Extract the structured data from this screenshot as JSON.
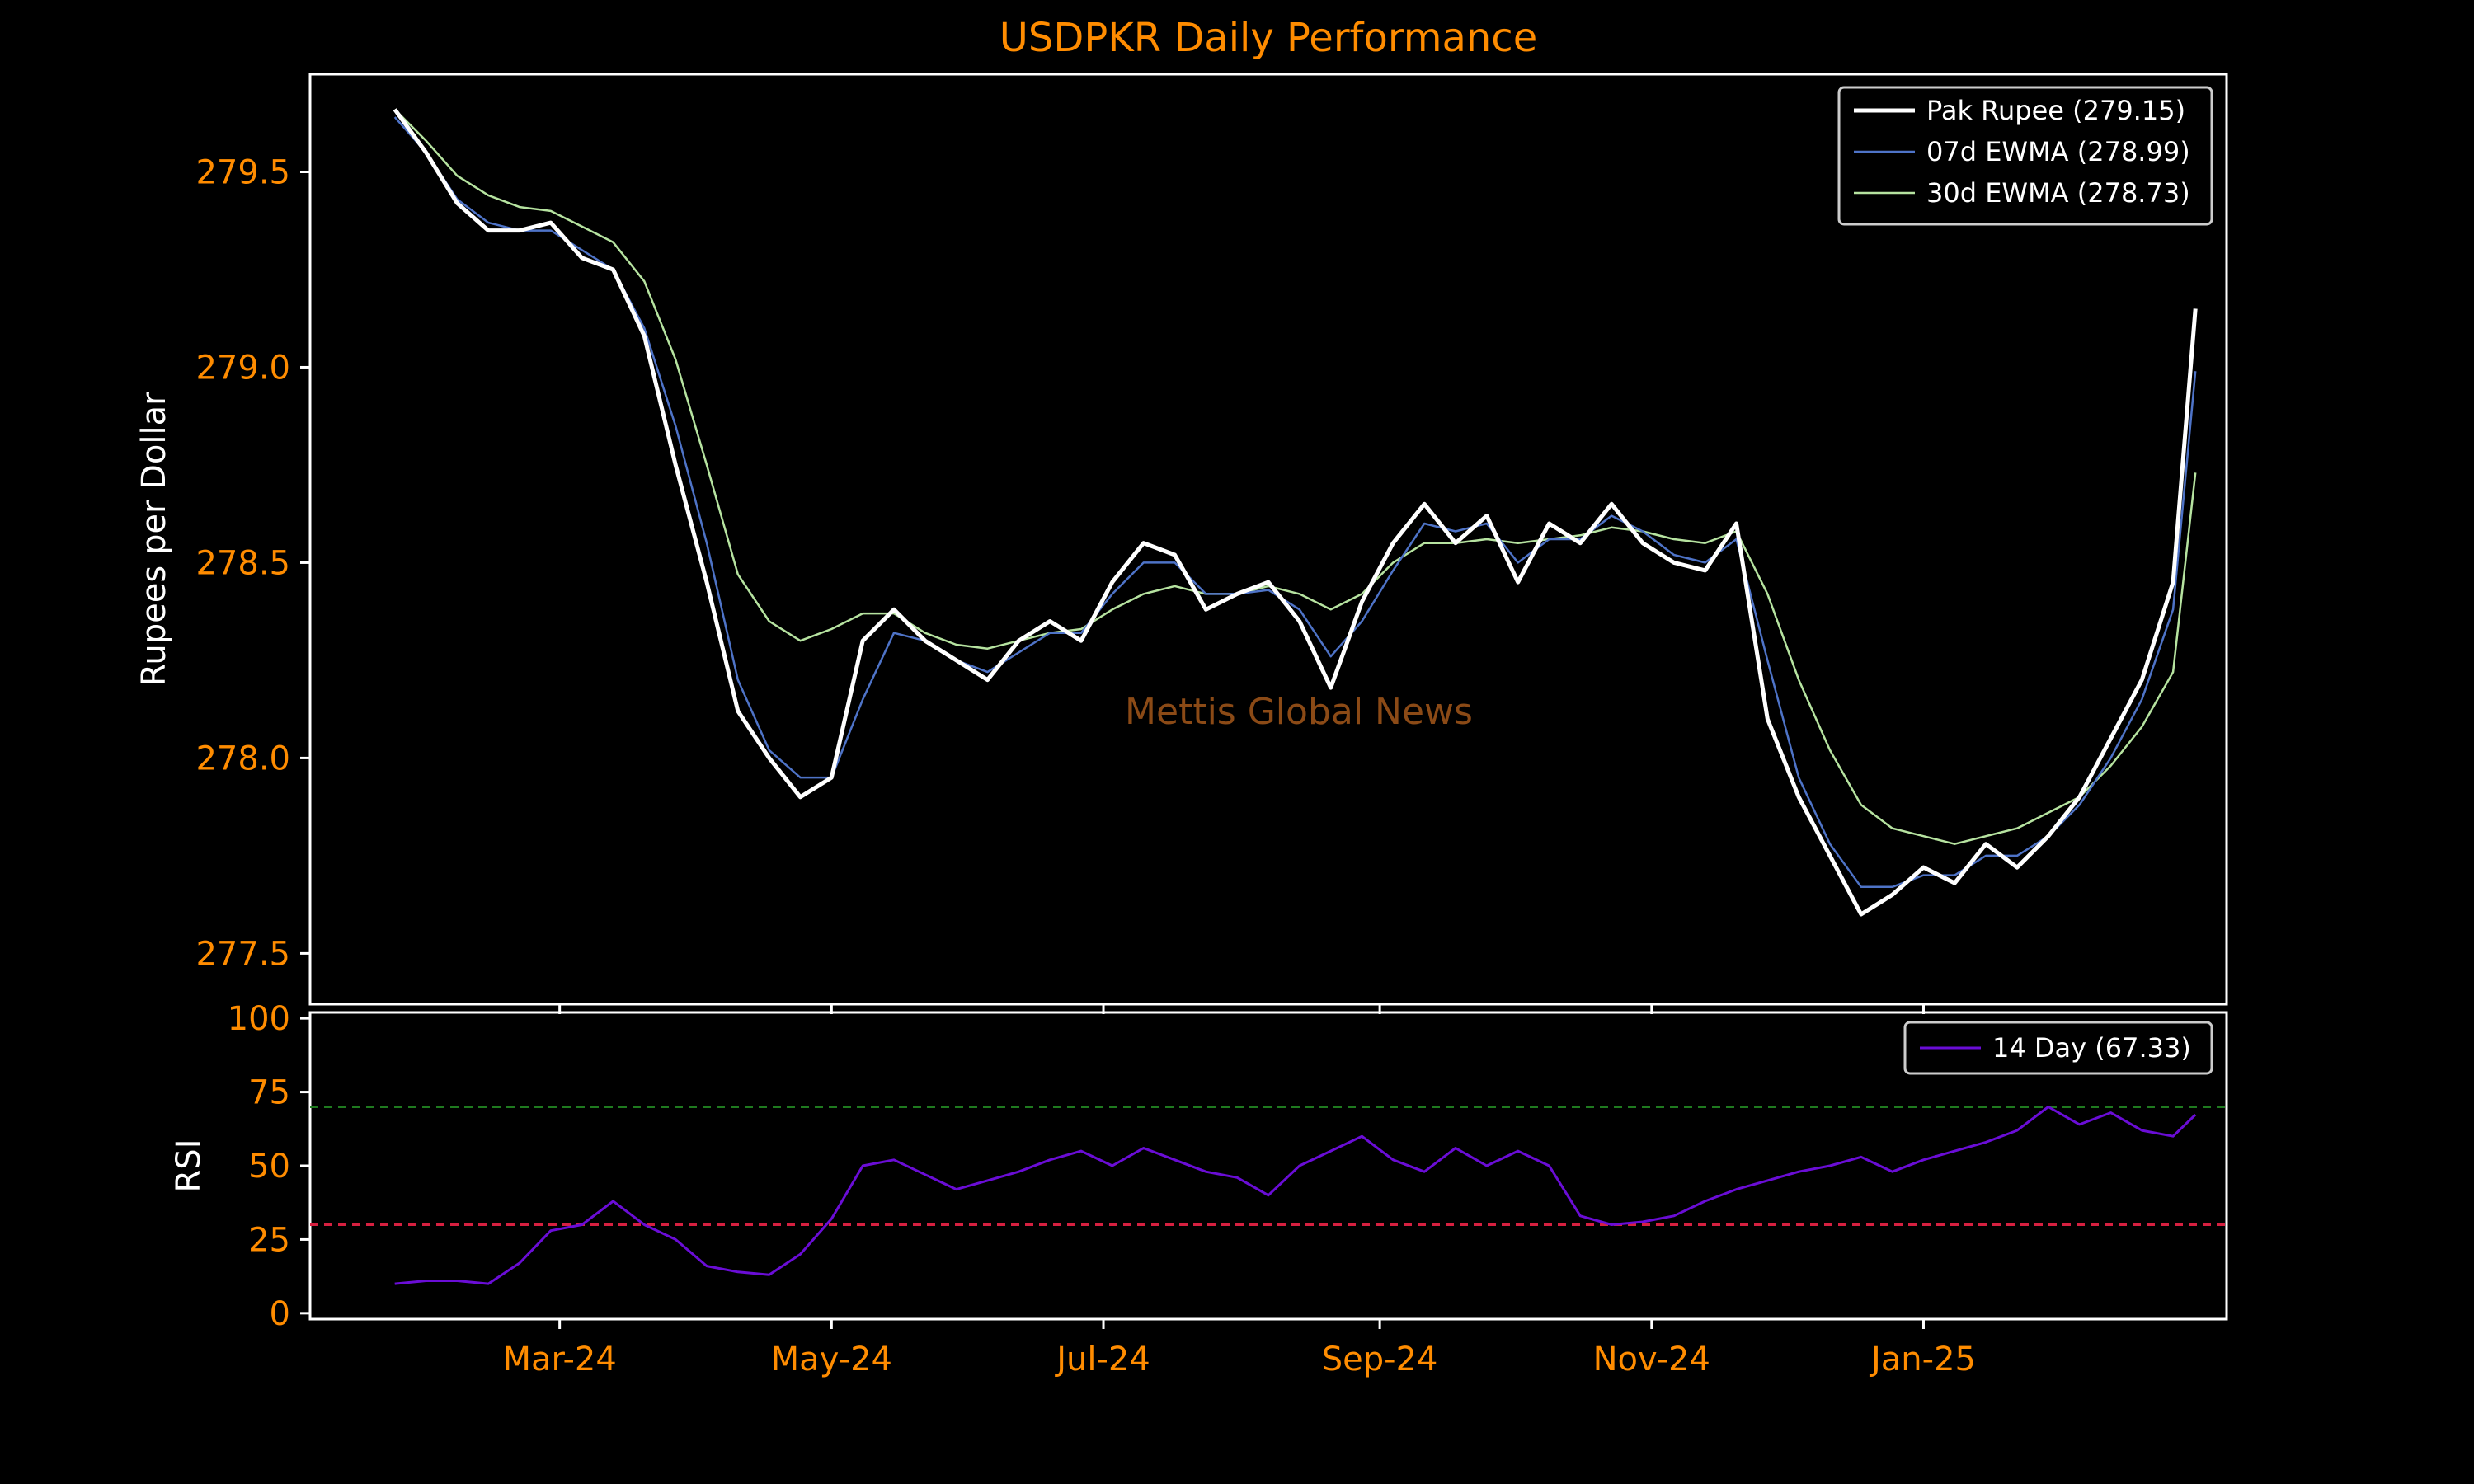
{
  "watermark": "Mettis Global News",
  "colors": {
    "background": "#000000",
    "frame": "#ffffff",
    "tick_label": "#ff8c00",
    "title": "#ff8c00",
    "price": "#ffffff",
    "ewma7": "#4e73c7",
    "ewma30": "#b6e3a0",
    "rsi": "#6a0dd6",
    "overbought": "#1f7a1f",
    "oversold": "#d62040",
    "watermark": "#8b4a16"
  },
  "chart_data": [
    {
      "type": "line",
      "title": "USDPKR Daily Performance",
      "xlabel": "",
      "ylabel": "Rupees per Dollar",
      "x_ticks": [
        "Mar-24",
        "May-24",
        "Jul-24",
        "Sep-24",
        "Nov-24",
        "Jan-25"
      ],
      "x_tick_dates": [
        "2024-03-01",
        "2024-05-01",
        "2024-07-01",
        "2024-09-01",
        "2024-11-01",
        "2025-01-01"
      ],
      "xlim": [
        "2024-01-05",
        "2025-03-10"
      ],
      "y_ticks": [
        "277.5",
        "278.0",
        "278.5",
        "279.0",
        "279.5"
      ],
      "y_tick_values": [
        277.5,
        278.0,
        278.5,
        279.0,
        279.5
      ],
      "ylim": [
        277.37,
        279.75
      ],
      "grid": false,
      "legend": "top-right",
      "x": [
        "2024-01-24",
        "2024-01-31",
        "2024-02-07",
        "2024-02-14",
        "2024-02-21",
        "2024-02-28",
        "2024-03-06",
        "2024-03-13",
        "2024-03-20",
        "2024-03-27",
        "2024-04-03",
        "2024-04-10",
        "2024-04-17",
        "2024-04-24",
        "2024-05-01",
        "2024-05-08",
        "2024-05-15",
        "2024-05-22",
        "2024-05-29",
        "2024-06-05",
        "2024-06-12",
        "2024-06-19",
        "2024-06-26",
        "2024-07-03",
        "2024-07-10",
        "2024-07-17",
        "2024-07-24",
        "2024-07-31",
        "2024-08-07",
        "2024-08-14",
        "2024-08-21",
        "2024-08-28",
        "2024-09-04",
        "2024-09-11",
        "2024-09-18",
        "2024-09-25",
        "2024-10-02",
        "2024-10-09",
        "2024-10-16",
        "2024-10-23",
        "2024-10-30",
        "2024-11-06",
        "2024-11-13",
        "2024-11-20",
        "2024-11-27",
        "2024-12-04",
        "2024-12-11",
        "2024-12-18",
        "2024-12-25",
        "2025-01-01",
        "2025-01-08",
        "2025-01-15",
        "2025-01-22",
        "2025-01-29",
        "2025-02-05",
        "2025-02-12",
        "2025-02-19",
        "2025-02-26",
        "2025-03-03"
      ],
      "series": [
        {
          "name": "Pak Rupee (279.15)",
          "values": [
            279.66,
            279.55,
            279.42,
            279.35,
            279.35,
            279.37,
            279.28,
            279.25,
            279.08,
            278.75,
            278.45,
            278.12,
            278.0,
            277.9,
            277.95,
            278.3,
            278.38,
            278.3,
            278.25,
            278.2,
            278.3,
            278.35,
            278.3,
            278.45,
            278.55,
            278.52,
            278.38,
            278.42,
            278.45,
            278.35,
            278.18,
            278.4,
            278.55,
            278.65,
            278.55,
            278.62,
            278.45,
            278.6,
            278.55,
            278.65,
            278.55,
            278.5,
            278.48,
            278.6,
            278.1,
            277.9,
            277.75,
            277.6,
            277.65,
            277.72,
            277.68,
            277.78,
            277.72,
            277.8,
            277.9,
            278.05,
            278.2,
            278.45,
            279.15
          ]
        },
        {
          "name": "07d EWMA (278.99)",
          "values": [
            279.64,
            279.55,
            279.43,
            279.37,
            279.35,
            279.35,
            279.3,
            279.25,
            279.1,
            278.85,
            278.55,
            278.2,
            278.02,
            277.95,
            277.95,
            278.15,
            278.32,
            278.3,
            278.25,
            278.22,
            278.27,
            278.32,
            278.32,
            278.42,
            278.5,
            278.5,
            278.42,
            278.42,
            278.43,
            278.38,
            278.26,
            278.35,
            278.48,
            278.6,
            278.58,
            278.6,
            278.5,
            278.56,
            278.56,
            278.62,
            278.58,
            278.52,
            278.5,
            278.56,
            278.25,
            277.95,
            277.78,
            277.67,
            277.67,
            277.7,
            277.7,
            277.75,
            277.75,
            277.8,
            277.88,
            278.0,
            278.15,
            278.38,
            278.99
          ]
        },
        {
          "name": "30d EWMA (278.73)",
          "values": [
            279.66,
            279.58,
            279.49,
            279.44,
            279.41,
            279.4,
            279.36,
            279.32,
            279.22,
            279.02,
            278.75,
            278.47,
            278.35,
            278.3,
            278.33,
            278.37,
            278.37,
            278.32,
            278.29,
            278.28,
            278.3,
            278.32,
            278.33,
            278.38,
            278.42,
            278.44,
            278.42,
            278.42,
            278.44,
            278.42,
            278.38,
            278.42,
            278.5,
            278.55,
            278.55,
            278.56,
            278.55,
            278.56,
            278.57,
            278.59,
            278.58,
            278.56,
            278.55,
            278.58,
            278.42,
            278.2,
            278.02,
            277.88,
            277.82,
            277.8,
            277.78,
            277.8,
            277.82,
            277.86,
            277.9,
            277.98,
            278.08,
            278.22,
            278.73
          ]
        }
      ]
    },
    {
      "type": "line",
      "title": "",
      "xlabel": "",
      "ylabel": "RSI",
      "y_ticks": [
        "0",
        "25",
        "50",
        "75",
        "100"
      ],
      "y_tick_values": [
        0,
        25,
        50,
        75,
        100
      ],
      "ylim": [
        -2,
        102
      ],
      "xlim": [
        "2024-01-05",
        "2025-03-10"
      ],
      "grid": false,
      "legend": "top-right",
      "reference_lines": [
        70,
        30
      ],
      "x": [
        "2024-01-24",
        "2024-01-31",
        "2024-02-07",
        "2024-02-14",
        "2024-02-21",
        "2024-02-28",
        "2024-03-06",
        "2024-03-13",
        "2024-03-20",
        "2024-03-27",
        "2024-04-03",
        "2024-04-10",
        "2024-04-17",
        "2024-04-24",
        "2024-05-01",
        "2024-05-08",
        "2024-05-15",
        "2024-05-22",
        "2024-05-29",
        "2024-06-05",
        "2024-06-12",
        "2024-06-19",
        "2024-06-26",
        "2024-07-03",
        "2024-07-10",
        "2024-07-17",
        "2024-07-24",
        "2024-07-31",
        "2024-08-07",
        "2024-08-14",
        "2024-08-21",
        "2024-08-28",
        "2024-09-04",
        "2024-09-11",
        "2024-09-18",
        "2024-09-25",
        "2024-10-02",
        "2024-10-09",
        "2024-10-16",
        "2024-10-23",
        "2024-10-30",
        "2024-11-06",
        "2024-11-13",
        "2024-11-20",
        "2024-11-27",
        "2024-12-04",
        "2024-12-11",
        "2024-12-18",
        "2024-12-25",
        "2025-01-01",
        "2025-01-08",
        "2025-01-15",
        "2025-01-22",
        "2025-01-29",
        "2025-02-05",
        "2025-02-12",
        "2025-02-19",
        "2025-02-26",
        "2025-03-03"
      ],
      "series": [
        {
          "name": "14 Day (67.33)",
          "values": [
            10,
            11,
            11,
            10,
            17,
            28,
            30,
            38,
            30,
            25,
            16,
            14,
            13,
            20,
            32,
            50,
            52,
            47,
            42,
            45,
            48,
            52,
            55,
            50,
            56,
            52,
            48,
            46,
            40,
            50,
            55,
            60,
            52,
            48,
            56,
            50,
            55,
            50,
            33,
            30,
            31,
            33,
            38,
            42,
            45,
            48,
            50,
            53,
            48,
            52,
            55,
            58,
            62,
            70,
            64,
            68,
            62,
            60,
            67.33
          ]
        }
      ]
    }
  ]
}
